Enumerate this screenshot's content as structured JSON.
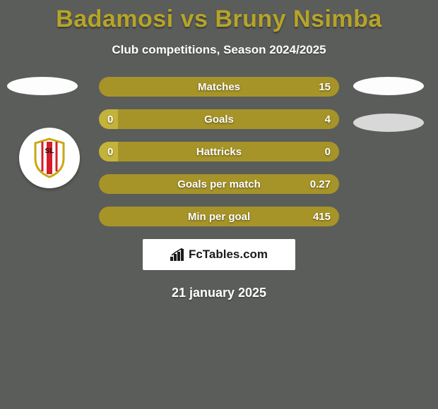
{
  "title": "Badamosi vs Bruny Nsimba",
  "title_color": "#b6a428",
  "subtitle": "Club competitions, Season 2024/2025",
  "date": "21 january 2025",
  "branding": "FcTables.com",
  "colors": {
    "background": "#5b5d5a",
    "bar_olive": "#a69428",
    "bar_olive_light": "#c4b33a",
    "text_white": "#ffffff"
  },
  "bars": [
    {
      "label": "Matches",
      "left_value": "",
      "right_value": "15",
      "left_pct": 0,
      "right_pct": 100,
      "left_color": "#c4b33a",
      "right_color": "#a69428"
    },
    {
      "label": "Goals",
      "left_value": "0",
      "right_value": "4",
      "left_pct": 8,
      "right_pct": 92,
      "left_color": "#c4b33a",
      "right_color": "#a69428"
    },
    {
      "label": "Hattricks",
      "left_value": "0",
      "right_value": "0",
      "left_pct": 8,
      "right_pct": 92,
      "left_color": "#c4b33a",
      "right_color": "#a69428"
    },
    {
      "label": "Goals per match",
      "left_value": "",
      "right_value": "0.27",
      "left_pct": 0,
      "right_pct": 100,
      "left_color": "#c4b33a",
      "right_color": "#a69428"
    },
    {
      "label": "Min per goal",
      "left_value": "",
      "right_value": "415",
      "left_pct": 0,
      "right_pct": 100,
      "left_color": "#c4b33a",
      "right_color": "#a69428"
    }
  ]
}
